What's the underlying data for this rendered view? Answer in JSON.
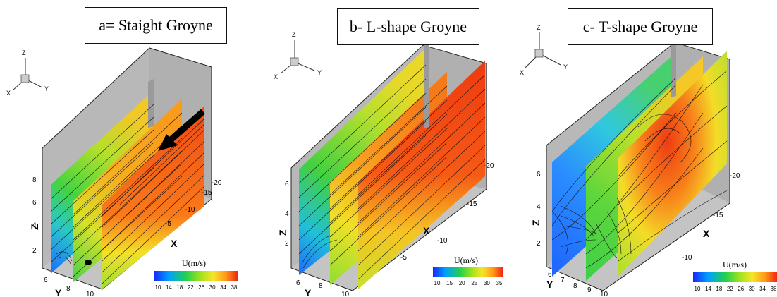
{
  "panels": [
    {
      "id": "a",
      "title": "a= Staight Groyne",
      "axes_triad": {
        "z": "Z",
        "x": "X",
        "y": "Y"
      },
      "z_axis": {
        "label": "Z",
        "ticks": [
          "2",
          "4",
          "6",
          "8"
        ]
      },
      "x_axis": {
        "label": "X",
        "ticks": [
          "-5",
          "-10",
          "-15",
          "-20"
        ]
      },
      "y_axis": {
        "label": "Y",
        "ticks": [
          "6",
          "8",
          "10"
        ]
      },
      "legend": {
        "title": "U(m/s)",
        "ticks": [
          "10",
          "14",
          "18",
          "22",
          "26",
          "30",
          "34",
          "38"
        ]
      },
      "has_flow_arrow": true
    },
    {
      "id": "b",
      "title": "b- L-shape Groyne",
      "axes_triad": {
        "z": "Z",
        "x": "X",
        "y": "Y"
      },
      "z_axis": {
        "label": "Z",
        "ticks": [
          "2",
          "4",
          "6"
        ]
      },
      "x_axis": {
        "label": "X",
        "ticks": [
          "-5",
          "-10",
          "-15",
          "-20"
        ]
      },
      "y_axis": {
        "label": "Y",
        "ticks": [
          "6",
          "8",
          "10"
        ]
      },
      "legend": {
        "title": "U(m/s)",
        "ticks": [
          "10",
          "15",
          "20",
          "25",
          "30",
          "35"
        ]
      },
      "has_flow_arrow": false
    },
    {
      "id": "c",
      "title": "c- T-shape Groyne",
      "axes_triad": {
        "z": "Z",
        "x": "X",
        "y": "Y"
      },
      "z_axis": {
        "label": "Z",
        "ticks": [
          "2",
          "4",
          "6"
        ]
      },
      "x_axis": {
        "label": "X",
        "ticks": [
          "-10",
          "-15",
          "-20"
        ]
      },
      "y_axis": {
        "label": "Y",
        "ticks": [
          "6",
          "7",
          "8",
          "9",
          "10"
        ]
      },
      "legend": {
        "title": "U(m/s)",
        "ticks": [
          "10",
          "14",
          "18",
          "22",
          "26",
          "30",
          "34",
          "38"
        ]
      },
      "has_flow_arrow": false
    }
  ],
  "colors": {
    "wall": "#b8b8b8",
    "low": "#1e64ff",
    "mid": "#3cd23c",
    "high_mid": "#f5dc28",
    "high": "#ff4614",
    "streamline": "#111111"
  }
}
